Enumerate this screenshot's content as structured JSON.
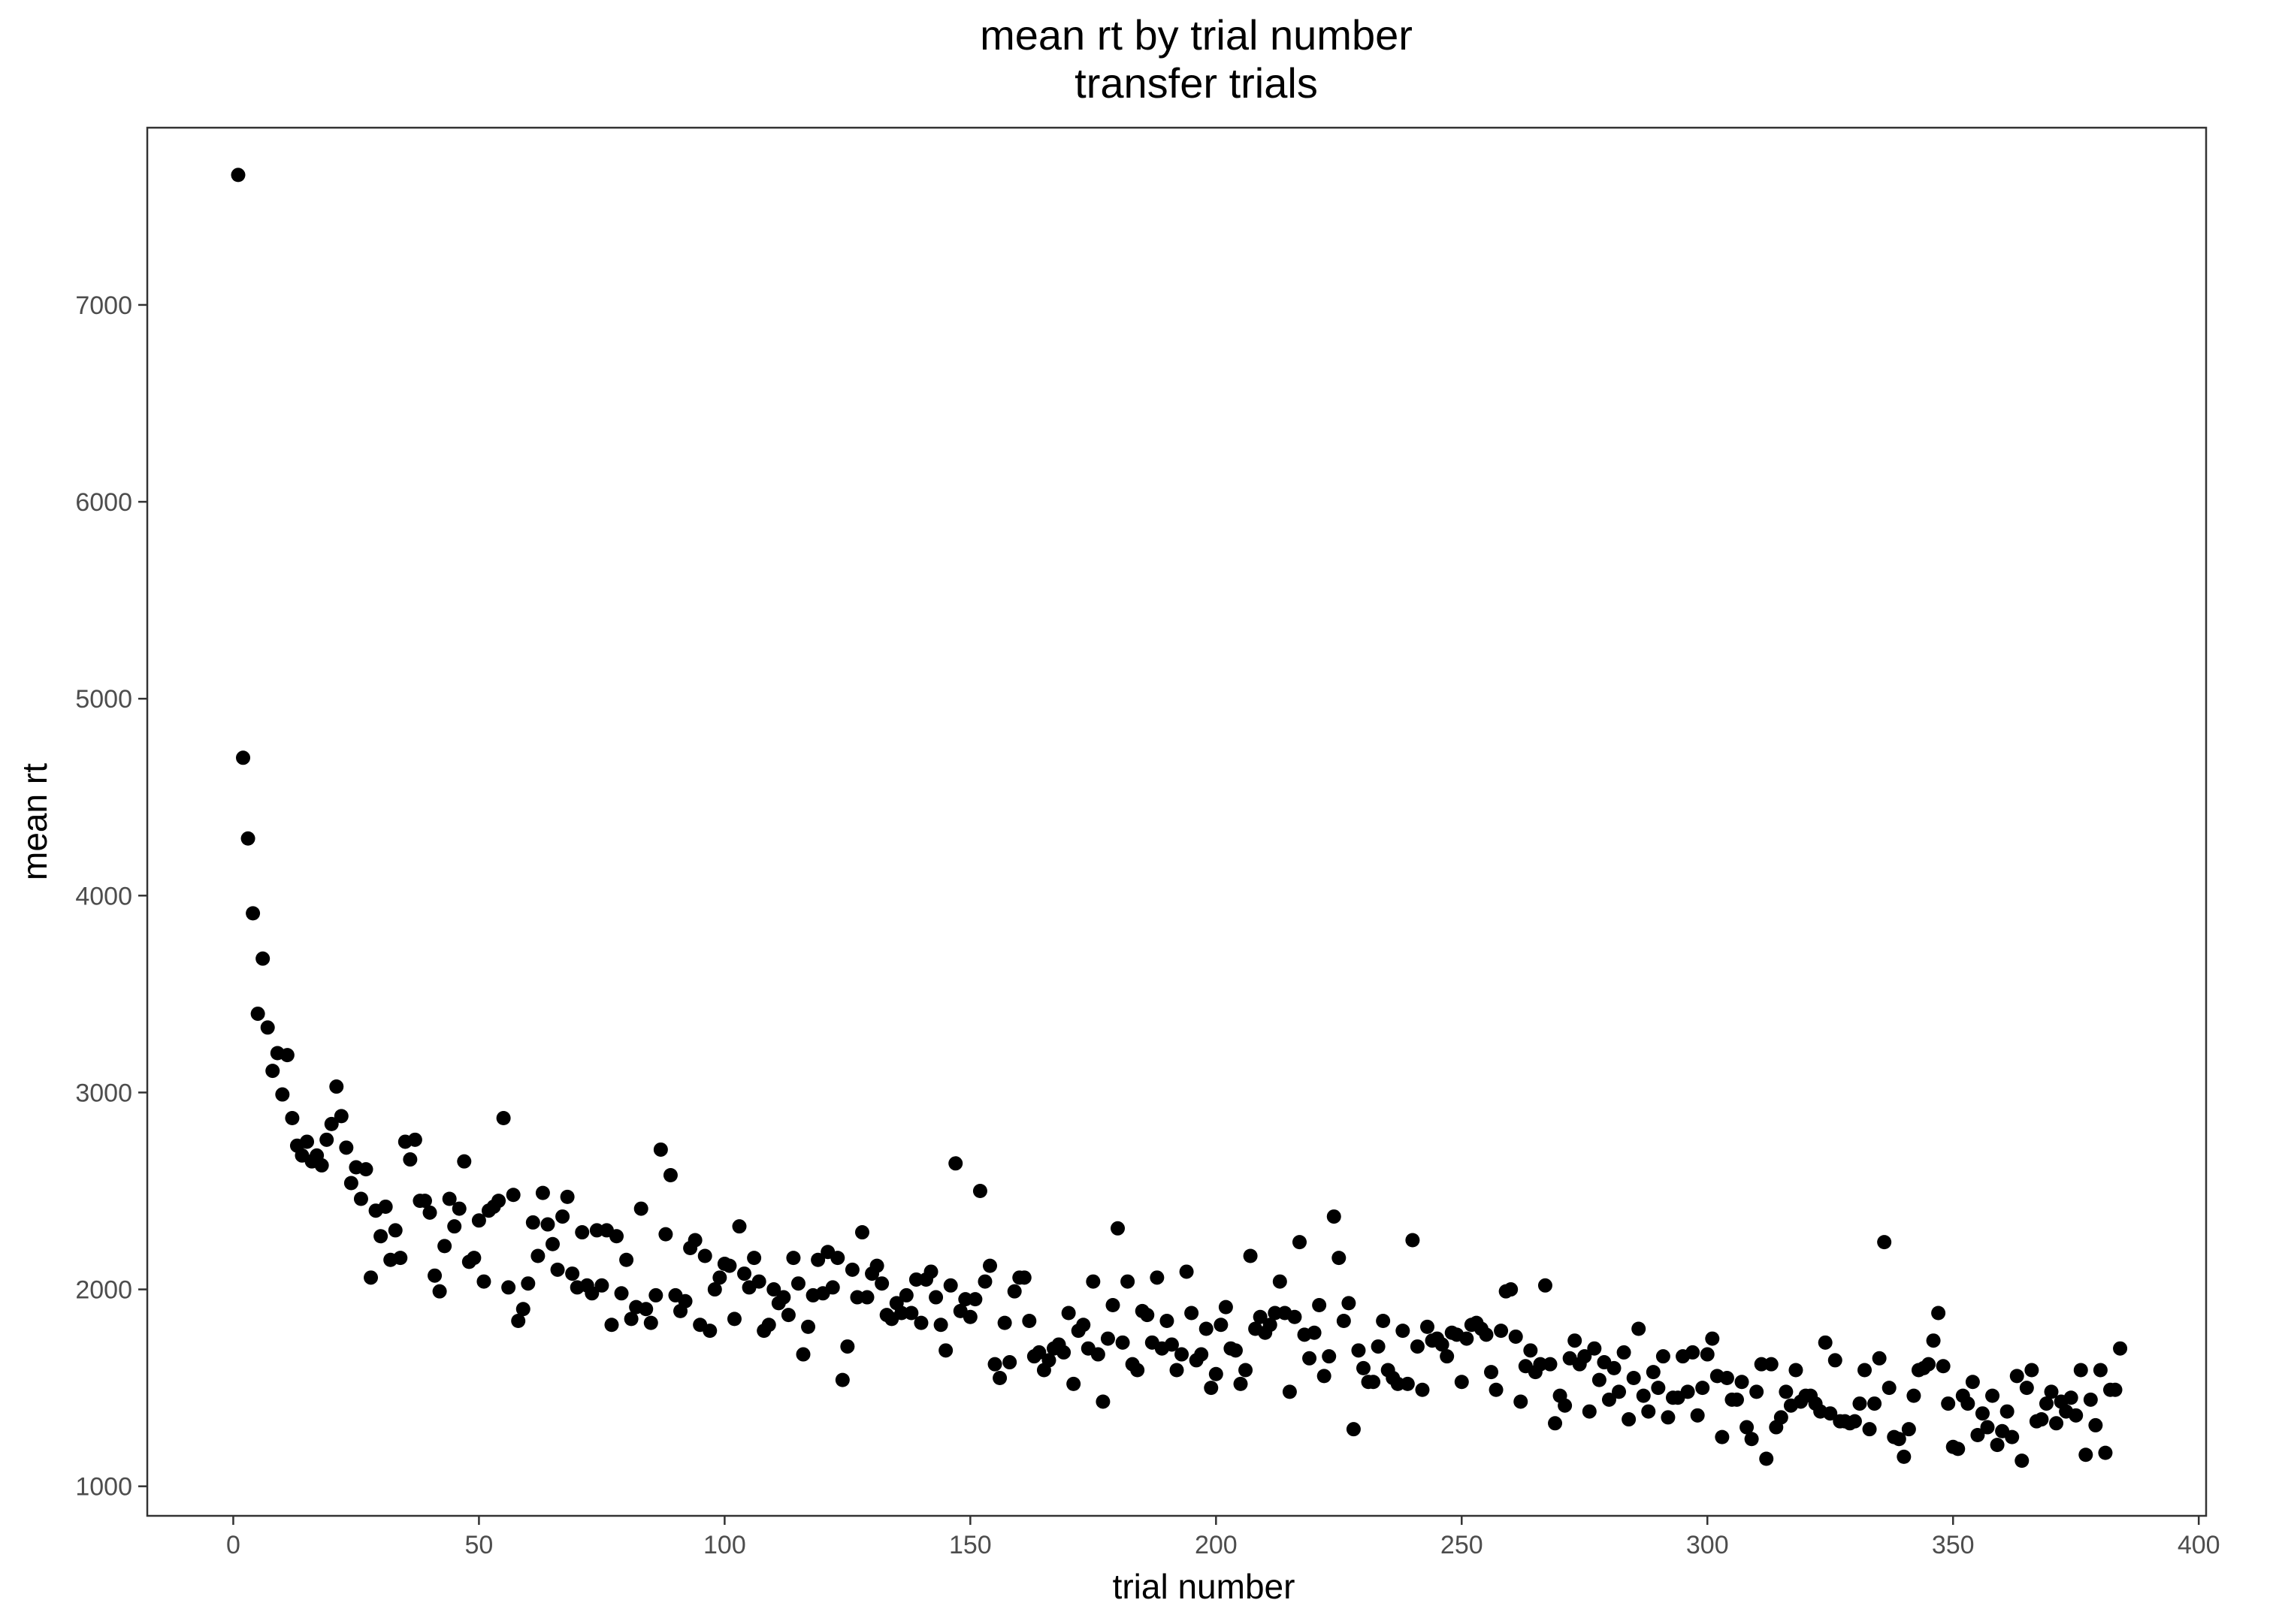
{
  "chart_data": {
    "type": "scatter",
    "title": "mean rt by trial number",
    "subtitle": "transfer trials",
    "xlabel": "trial number",
    "ylabel": "mean rt",
    "xlim": [
      -17.5,
      401.5
    ],
    "ylim": [
      850,
      7900
    ],
    "xticks": [
      0,
      50,
      100,
      150,
      200,
      250,
      300,
      350,
      400
    ],
    "yticks": [
      1000,
      2000,
      3000,
      4000,
      5000,
      6000,
      7000
    ],
    "grid": false,
    "legend": "none",
    "point_color": "#000000",
    "x": [
      1,
      2,
      3,
      4,
      5,
      6,
      7,
      8,
      9,
      10,
      11,
      12,
      13,
      14,
      15,
      16,
      17,
      18,
      19,
      20,
      21,
      22,
      23,
      24,
      25,
      26,
      27,
      28,
      29,
      30,
      31,
      32,
      33,
      34,
      35,
      36,
      37,
      38,
      39,
      40,
      41,
      42,
      43,
      44,
      45,
      46,
      47,
      48,
      49,
      50,
      51,
      52,
      53,
      54,
      55,
      56,
      57,
      58,
      59,
      60,
      61,
      62,
      63,
      64,
      65,
      66,
      67,
      68,
      69,
      70,
      71,
      72,
      73,
      74,
      75,
      76,
      77,
      78,
      79,
      80,
      81,
      82,
      83,
      84,
      85,
      86,
      87,
      88,
      89,
      90,
      91,
      92,
      93,
      94,
      95,
      96,
      97,
      98,
      99,
      100,
      101,
      102,
      103,
      104,
      105,
      106,
      107,
      108,
      109,
      110,
      111,
      112,
      113,
      114,
      115,
      116,
      117,
      118,
      119,
      120,
      121,
      122,
      123,
      124,
      125,
      126,
      127,
      128,
      129,
      130,
      131,
      132,
      133,
      134,
      135,
      136,
      137,
      138,
      139,
      140,
      141,
      142,
      143,
      144,
      145,
      146,
      147,
      148,
      149,
      150,
      151,
      152,
      153,
      154,
      155,
      156,
      157,
      158,
      159,
      160,
      161,
      162,
      163,
      164,
      165,
      166,
      167,
      168,
      169,
      170,
      171,
      172,
      173,
      174,
      175,
      176,
      177,
      178,
      179,
      180,
      181,
      182,
      183,
      184,
      185,
      186,
      187,
      188,
      189,
      190,
      191,
      192,
      193,
      194,
      195,
      196,
      197,
      198,
      199,
      200,
      201,
      202,
      203,
      204,
      205,
      206,
      207,
      208,
      209,
      210,
      211,
      212,
      213,
      214,
      215,
      216,
      217,
      218,
      219,
      220,
      221,
      222,
      223,
      224,
      225,
      226,
      227,
      228,
      229,
      230,
      231,
      232,
      233,
      234,
      235,
      236,
      237,
      238,
      239,
      240,
      241,
      242,
      243,
      244,
      245,
      246,
      247,
      248,
      249,
      250,
      251,
      252,
      253,
      254,
      255,
      256,
      257,
      258,
      259,
      260,
      261,
      262,
      263,
      264,
      265,
      266,
      267,
      268,
      269,
      270,
      271,
      272,
      273,
      274,
      275,
      276,
      277,
      278,
      279,
      280,
      281,
      282,
      283,
      284,
      285,
      286,
      287,
      288,
      289,
      290,
      291,
      292,
      293,
      294,
      295,
      296,
      297,
      298,
      299,
      300,
      301,
      302,
      303,
      304,
      305,
      306,
      307,
      308,
      309,
      310,
      311,
      312,
      313,
      314,
      315,
      316,
      317,
      318,
      319,
      320,
      321,
      322,
      323,
      324,
      325,
      326,
      327,
      328,
      329,
      330,
      331,
      332,
      333,
      334,
      335,
      336,
      337,
      338,
      339,
      340,
      341,
      342,
      343,
      344,
      345,
      346,
      347,
      348,
      349,
      350,
      351,
      352,
      353,
      354,
      355,
      356,
      357,
      358,
      359,
      360,
      361,
      362,
      363,
      364,
      365,
      366,
      367,
      368,
      369,
      370,
      371,
      372,
      373,
      374,
      375,
      376,
      377,
      378,
      379,
      380,
      381,
      382,
      383,
      384
    ],
    "y": [
      7660,
      4700,
      4290,
      3910,
      3400,
      3680,
      3330,
      3110,
      3200,
      2990,
      3190,
      2870,
      2730,
      2680,
      2750,
      2650,
      2680,
      2630,
      2760,
      2840,
      3030,
      2880,
      2720,
      2540,
      2620,
      2460,
      2610,
      2060,
      2400,
      2270,
      2420,
      2150,
      2300,
      2160,
      2750,
      2660,
      2760,
      2450,
      2450,
      2390,
      2070,
      1990,
      2220,
      2460,
      2320,
      2410,
      2650,
      2140,
      2160,
      2350,
      2040,
      2400,
      2420,
      2450,
      2870,
      2010,
      2480,
      1840,
      1900,
      2030,
      2340,
      2170,
      2490,
      2330,
      2230,
      2100,
      2370,
      2470,
      2080,
      2010,
      2290,
      2020,
      1980,
      2300,
      2020,
      2300,
      1820,
      2270,
      1980,
      2150,
      1850,
      1910,
      2410,
      1900,
      1830,
      1970,
      2710,
      2280,
      2580,
      1970,
      1890,
      1940,
      2210,
      2250,
      1820,
      2170,
      1790,
      2000,
      2060,
      2130,
      2120,
      1850,
      2320,
      2080,
      2010,
      2160,
      2040,
      1790,
      1820,
      2000,
      1930,
      1960,
      1870,
      2160,
      2030,
      1670,
      1810,
      1970,
      2150,
      1980,
      2190,
      2010,
      2160,
      1540,
      1710,
      2100,
      1960,
      2290,
      1960,
      2080,
      2120,
      2030,
      1870,
      1850,
      1930,
      1880,
      1970,
      1880,
      2050,
      1830,
      2050,
      2090,
      1960,
      1820,
      1690,
      2020,
      2640,
      1890,
      1950,
      1860,
      1950,
      2500,
      2040,
      2120,
      1620,
      1550,
      1830,
      1630,
      1990,
      2060,
      2060,
      1840,
      1660,
      1680,
      1590,
      1640,
      1700,
      1720,
      1680,
      1880,
      1520,
      1790,
      1820,
      1700,
      2040,
      1670,
      1430,
      1750,
      1920,
      2310,
      1730,
      2040,
      1620,
      1590,
      1890,
      1870,
      1730,
      2060,
      1700,
      1840,
      1720,
      1590,
      1670,
      2090,
      1880,
      1640,
      1670,
      1800,
      1500,
      1570,
      1820,
      1910,
      1700,
      1690,
      1520,
      1590,
      2170,
      1800,
      1860,
      1780,
      1820,
      1880,
      2040,
      1880,
      1480,
      1860,
      2240,
      1770,
      1650,
      1780,
      1920,
      1560,
      1660,
      2370,
      2160,
      1840,
      1930,
      1290,
      1690,
      1600,
      1530,
      1530,
      1710,
      1840,
      1590,
      1550,
      1520,
      1790,
      1520,
      2250,
      1710,
      1490,
      1810,
      1740,
      1750,
      1720,
      1660,
      1780,
      1770,
      1530,
      1750,
      1820,
      1830,
      1800,
      1770,
      1580,
      1490,
      1790,
      1990,
      2000,
      1760,
      1430,
      1610,
      1690,
      1580,
      1620,
      2020,
      1620,
      1320,
      1460,
      1410,
      1650,
      1740,
      1620,
      1660,
      1380,
      1700,
      1540,
      1630,
      1440,
      1600,
      1480,
      1680,
      1340,
      1550,
      1800,
      1460,
      1380,
      1580,
      1500,
      1660,
      1350,
      1450,
      1450,
      1660,
      1480,
      1680,
      1360,
      1500,
      1670,
      1750,
      1560,
      1250,
      1550,
      1440,
      1440,
      1530,
      1300,
      1240,
      1480,
      1620,
      1140,
      1620,
      1300,
      1350,
      1480,
      1410,
      1590,
      1430,
      1460,
      1460,
      1420,
      1380,
      1730,
      1370,
      1640,
      1330,
      1330,
      1320,
      1330,
      1420,
      1590,
      1290,
      1420,
      1650,
      2240,
      1500,
      1250,
      1240,
      1150,
      1290,
      1460,
      1590,
      1600,
      1620,
      1740,
      1880,
      1610,
      1420,
      1200,
      1190,
      1460,
      1420,
      1530,
      1260,
      1370,
      1300,
      1460,
      1210,
      1280,
      1380,
      1250,
      1560,
      1130,
      1500,
      1590,
      1330,
      1340,
      1420,
      1480,
      1320,
      1430,
      1380,
      1450,
      1360,
      1590,
      1160,
      1440,
      1310,
      1590,
      1170,
      1490,
      1490,
      1700
    ]
  }
}
